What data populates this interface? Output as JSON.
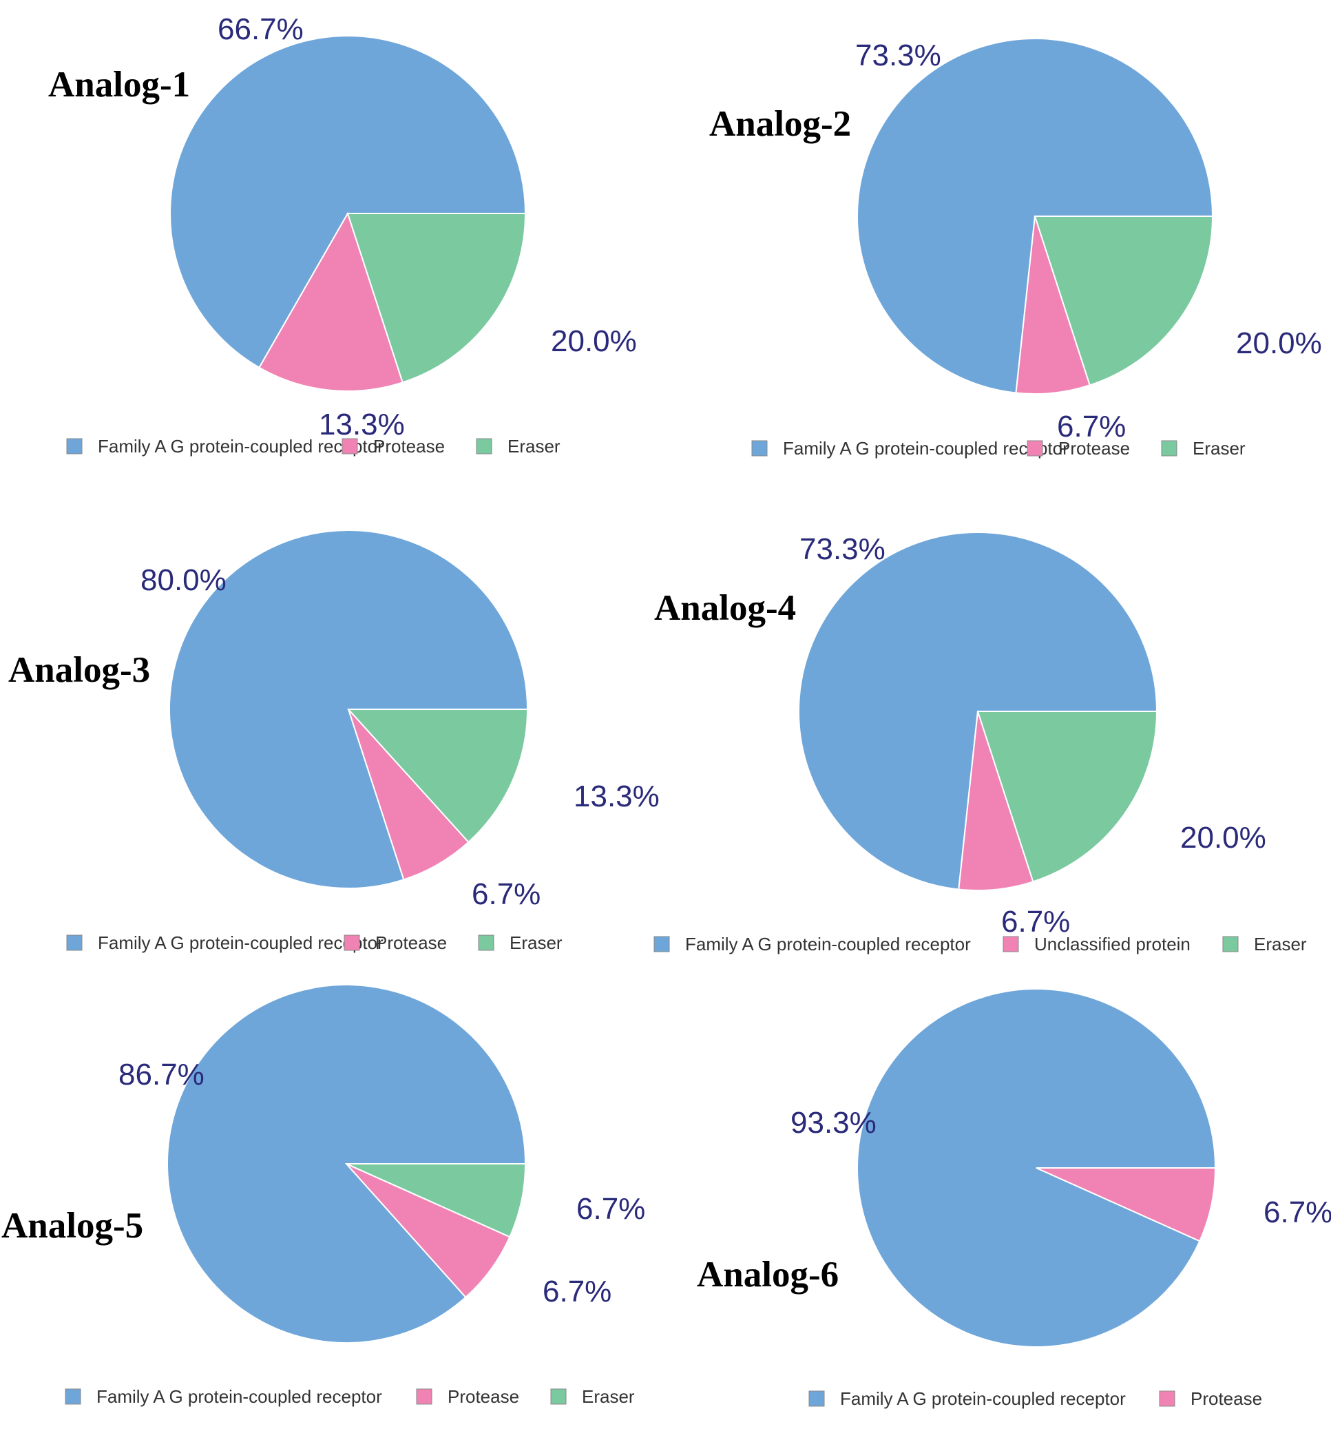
{
  "colors": {
    "Family A G protein-coupled receptor": "#6EA6DA",
    "Protease": "#F083B4",
    "Unclassified protein": "#F083B4",
    "Eraser": "#7BC99F",
    "label": "#2A2A7A",
    "legend_border": "#888888"
  },
  "chart_data": [
    {
      "type": "pie",
      "title": "Analog-1",
      "categories": [
        "Family A G protein-coupled receptor",
        "Protease",
        "Eraser"
      ],
      "values": [
        66.7,
        13.3,
        20.0
      ],
      "labels": [
        "66.7%",
        "13.3%",
        "20.0%"
      ],
      "legend": [
        "Family A G protein-coupled receptor",
        "Protease",
        "Eraser"
      ]
    },
    {
      "type": "pie",
      "title": "Analog-2",
      "categories": [
        "Family A G protein-coupled receptor",
        "Protease",
        "Eraser"
      ],
      "values": [
        73.3,
        6.7,
        20.0
      ],
      "labels": [
        "73.3%",
        "6.7%",
        "20.0%"
      ],
      "legend": [
        "Family A G protein-coupled receptor",
        "Protease",
        "Eraser"
      ]
    },
    {
      "type": "pie",
      "title": "Analog-3",
      "categories": [
        "Family A G protein-coupled receptor",
        "Protease",
        "Eraser"
      ],
      "values": [
        80.0,
        6.7,
        13.3
      ],
      "labels": [
        "80.0%",
        "6.7%",
        "13.3%"
      ],
      "legend": [
        "Family A G protein-coupled receptor",
        "Protease",
        "Eraser"
      ]
    },
    {
      "type": "pie",
      "title": "Analog-4",
      "categories": [
        "Family A G protein-coupled receptor",
        "Unclassified protein",
        "Eraser"
      ],
      "values": [
        73.3,
        6.7,
        20.0
      ],
      "labels": [
        "73.3%",
        "6.7%",
        "20.0%"
      ],
      "legend": [
        "Family A G protein-coupled receptor",
        "Unclassified protein",
        "Eraser"
      ]
    },
    {
      "type": "pie",
      "title": "Analog-5",
      "categories": [
        "Family A G protein-coupled receptor",
        "Protease",
        "Eraser"
      ],
      "values": [
        86.7,
        6.7,
        6.7
      ],
      "labels": [
        "86.7%",
        "6.7%",
        "6.7%"
      ],
      "legend": [
        "Family A G protein-coupled receptor",
        "Protease",
        "Eraser"
      ]
    },
    {
      "type": "pie",
      "title": "Analog-6",
      "categories": [
        "Family A G protein-coupled receptor",
        "Protease"
      ],
      "values": [
        93.3,
        6.7
      ],
      "labels": [
        "93.3%",
        "6.7%"
      ],
      "legend": [
        "Family A G protein-coupled receptor",
        "Protease"
      ]
    }
  ]
}
